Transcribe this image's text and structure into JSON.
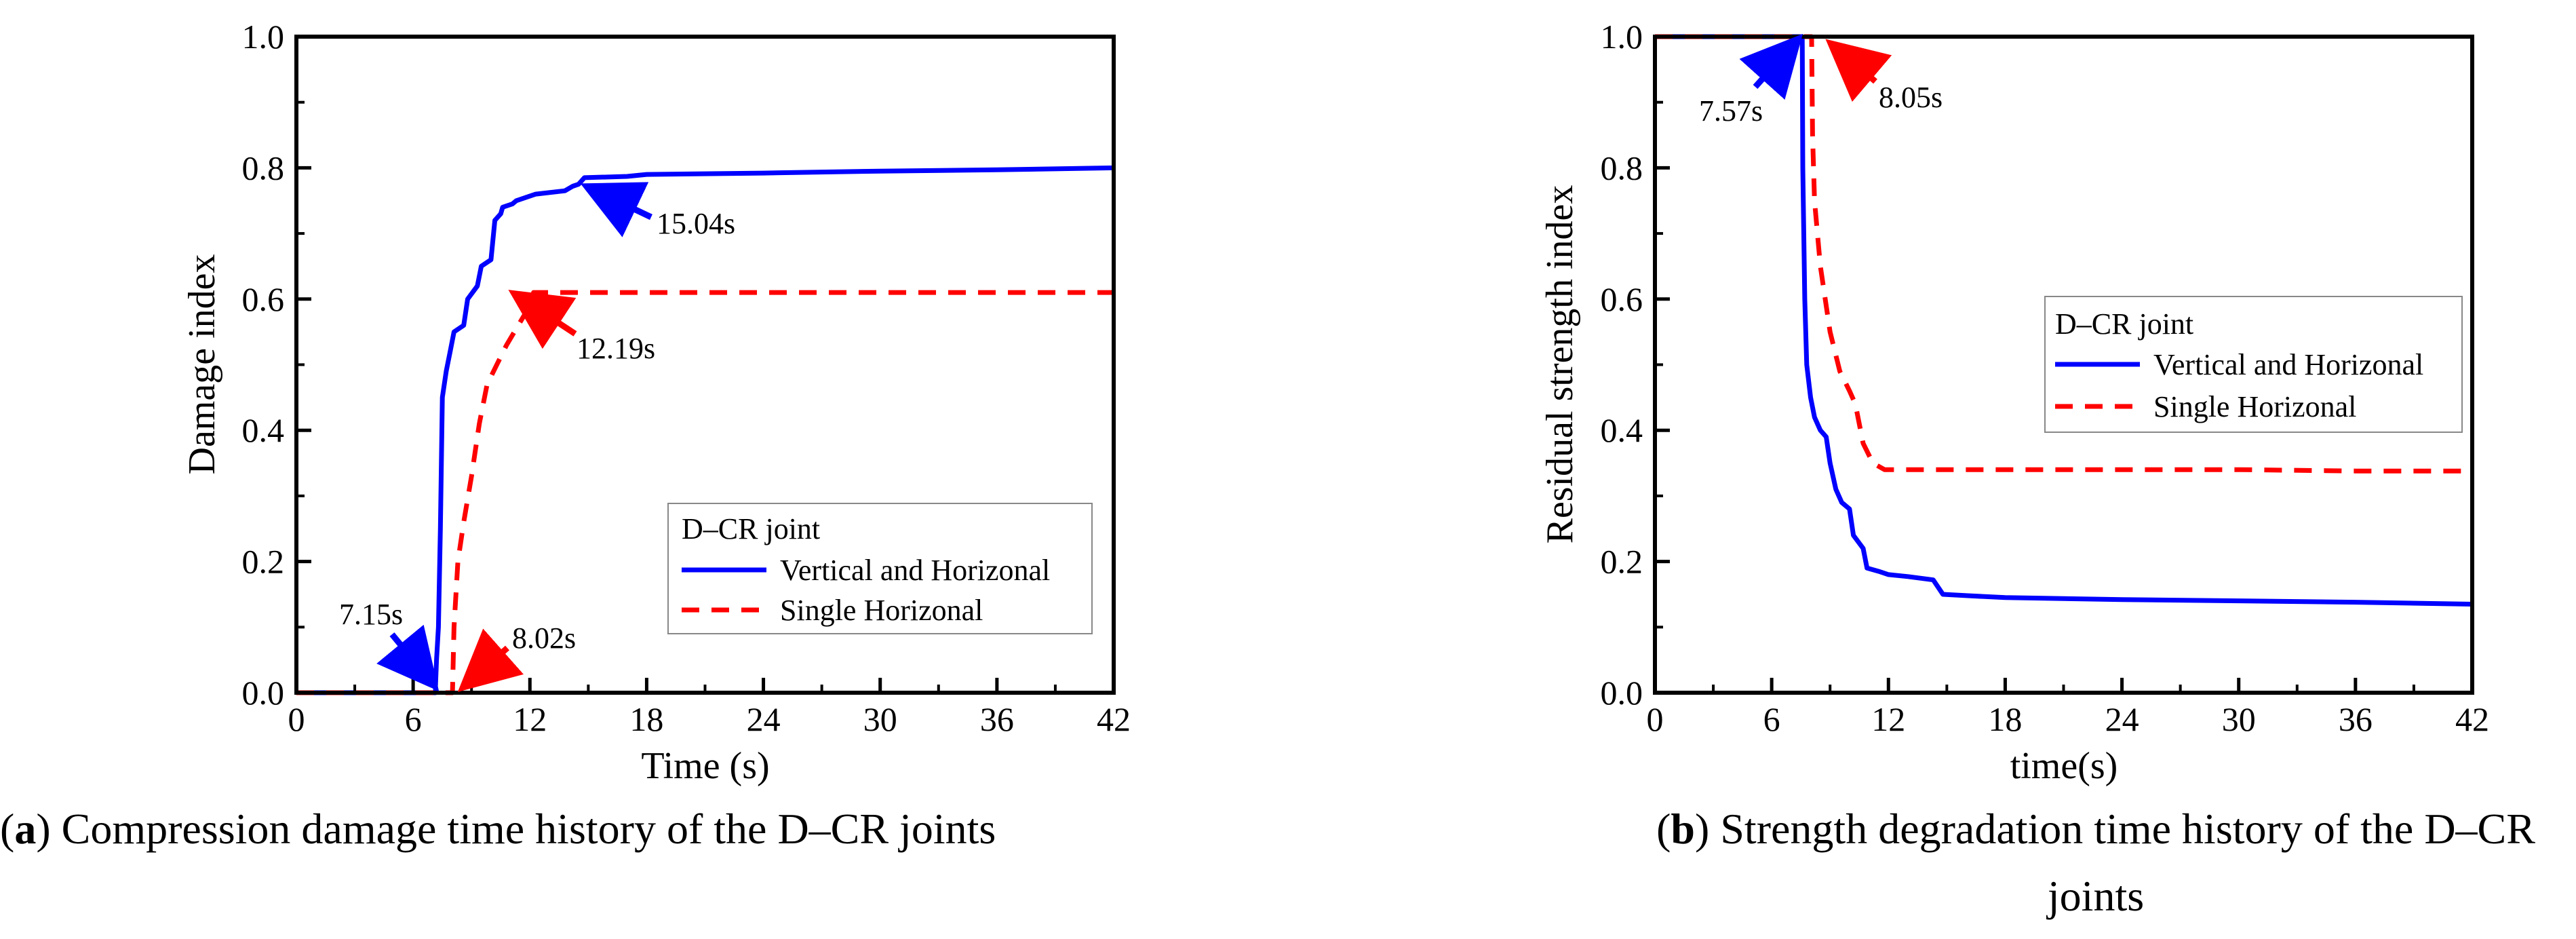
{
  "chart_data": [
    {
      "type": "line",
      "panel": "a",
      "caption_letter": "a",
      "caption_text": "Compression damage time history of the D–CR joints",
      "xlabel": "Time (s)",
      "ylabel": "Damage index",
      "xlim": [
        0,
        42
      ],
      "ylim": [
        0,
        1.0
      ],
      "xticks": [
        0,
        6,
        12,
        18,
        24,
        30,
        36,
        42
      ],
      "yticks": [
        0.0,
        0.2,
        0.4,
        0.6,
        0.8,
        1.0
      ],
      "xtick_labels": [
        "0",
        "6",
        "12",
        "18",
        "24",
        "30",
        "36",
        "42"
      ],
      "ytick_labels": [
        "0.0",
        "0.2",
        "0.4",
        "0.6",
        "0.8",
        "1.0"
      ],
      "legend_title": "D–CR joint",
      "legend_position": "bottom-right",
      "series": [
        {
          "name": "Vertical and Horizonal",
          "color": "#0000ff",
          "style": "solid",
          "points": [
            [
              0,
              0
            ],
            [
              7.15,
              0
            ],
            [
              7.15,
              0.01
            ],
            [
              7.2,
              0.05
            ],
            [
              7.3,
              0.1
            ],
            [
              7.4,
              0.25
            ],
            [
              7.5,
              0.45
            ],
            [
              7.7,
              0.49
            ],
            [
              7.9,
              0.52
            ],
            [
              8.1,
              0.55
            ],
            [
              8.6,
              0.56
            ],
            [
              8.8,
              0.6
            ],
            [
              9.3,
              0.62
            ],
            [
              9.5,
              0.65
            ],
            [
              10.0,
              0.66
            ],
            [
              10.2,
              0.72
            ],
            [
              10.5,
              0.73
            ],
            [
              10.6,
              0.74
            ],
            [
              11.1,
              0.745
            ],
            [
              11.3,
              0.75
            ],
            [
              11.8,
              0.755
            ],
            [
              12.3,
              0.76
            ],
            [
              13.8,
              0.765
            ],
            [
              14.2,
              0.772
            ],
            [
              14.5,
              0.775
            ],
            [
              14.8,
              0.785
            ],
            [
              17.0,
              0.787
            ],
            [
              18.0,
              0.79
            ],
            [
              24,
              0.792
            ],
            [
              30,
              0.795
            ],
            [
              36,
              0.797
            ],
            [
              42,
              0.8
            ]
          ]
        },
        {
          "name": "Single Horizonal",
          "color": "#ff0000",
          "style": "dashed",
          "points": [
            [
              0,
              0
            ],
            [
              8.02,
              0
            ],
            [
              8.1,
              0.1
            ],
            [
              8.3,
              0.2
            ],
            [
              8.6,
              0.26
            ],
            [
              9.0,
              0.33
            ],
            [
              9.4,
              0.41
            ],
            [
              9.8,
              0.47
            ],
            [
              10.3,
              0.5
            ],
            [
              10.8,
              0.53
            ],
            [
              11.4,
              0.56
            ],
            [
              12.0,
              0.59
            ],
            [
              12.19,
              0.61
            ],
            [
              18,
              0.61
            ],
            [
              24,
              0.61
            ],
            [
              30,
              0.61
            ],
            [
              36,
              0.61
            ],
            [
              42,
              0.61
            ]
          ]
        }
      ],
      "annotations": [
        {
          "text": "7.15s",
          "x": 7.15,
          "y": 0.0,
          "color": "#0000ff"
        },
        {
          "text": "8.02s",
          "x": 8.02,
          "y": 0.0,
          "color": "#ff0000"
        },
        {
          "text": "15.04s",
          "x": 15.04,
          "y": 0.785,
          "color": "#0000ff"
        },
        {
          "text": "12.19s",
          "x": 12.19,
          "y": 0.61,
          "color": "#ff0000"
        }
      ]
    },
    {
      "type": "line",
      "panel": "b",
      "caption_letter": "b",
      "caption_text_line1": "Strength degradation time history of the D–CR",
      "caption_text_line2": "joints",
      "xlabel": "time(s)",
      "ylabel": "Residual strength index",
      "xlim": [
        0,
        42
      ],
      "ylim": [
        0,
        1.0
      ],
      "xticks": [
        0,
        6,
        12,
        18,
        24,
        30,
        36,
        42
      ],
      "yticks": [
        0.0,
        0.2,
        0.4,
        0.6,
        0.8,
        1.0
      ],
      "xtick_labels": [
        "0",
        "6",
        "12",
        "18",
        "24",
        "30",
        "36",
        "42"
      ],
      "ytick_labels": [
        "0.0",
        "0.2",
        "0.4",
        "0.6",
        "0.8",
        "1.0"
      ],
      "legend_title": "D–CR joint",
      "legend_position": "center-right",
      "series": [
        {
          "name": "Vertical and Horizonal",
          "color": "#0000ff",
          "style": "solid",
          "points": [
            [
              0,
              1.0
            ],
            [
              7.57,
              1.0
            ],
            [
              7.6,
              0.8
            ],
            [
              7.7,
              0.6
            ],
            [
              7.8,
              0.5
            ],
            [
              8.0,
              0.45
            ],
            [
              8.2,
              0.42
            ],
            [
              8.5,
              0.4
            ],
            [
              8.8,
              0.39
            ],
            [
              9.0,
              0.35
            ],
            [
              9.3,
              0.31
            ],
            [
              9.6,
              0.29
            ],
            [
              10.0,
              0.28
            ],
            [
              10.2,
              0.24
            ],
            [
              10.7,
              0.22
            ],
            [
              10.9,
              0.19
            ],
            [
              11.5,
              0.185
            ],
            [
              12.0,
              0.18
            ],
            [
              13.0,
              0.177
            ],
            [
              14.3,
              0.172
            ],
            [
              14.8,
              0.15
            ],
            [
              16.0,
              0.148
            ],
            [
              18.0,
              0.145
            ],
            [
              24,
              0.142
            ],
            [
              30,
              0.14
            ],
            [
              36,
              0.138
            ],
            [
              42,
              0.135
            ]
          ]
        },
        {
          "name": "Single Horizonal",
          "color": "#ff0000",
          "style": "dashed",
          "points": [
            [
              0,
              1.0
            ],
            [
              8.05,
              1.0
            ],
            [
              8.1,
              0.85
            ],
            [
              8.2,
              0.75
            ],
            [
              8.5,
              0.65
            ],
            [
              9.0,
              0.55
            ],
            [
              9.5,
              0.49
            ],
            [
              10.0,
              0.46
            ],
            [
              10.3,
              0.44
            ],
            [
              10.7,
              0.38
            ],
            [
              11.2,
              0.35
            ],
            [
              11.8,
              0.34
            ],
            [
              18,
              0.34
            ],
            [
              24,
              0.34
            ],
            [
              30,
              0.34
            ],
            [
              36,
              0.338
            ],
            [
              42,
              0.338
            ]
          ]
        }
      ],
      "annotations": [
        {
          "text": "7.57s",
          "x": 7.57,
          "y": 1.0,
          "color": "#0000ff"
        },
        {
          "text": "8.05s",
          "x": 8.05,
          "y": 1.0,
          "color": "#ff0000"
        }
      ]
    }
  ]
}
